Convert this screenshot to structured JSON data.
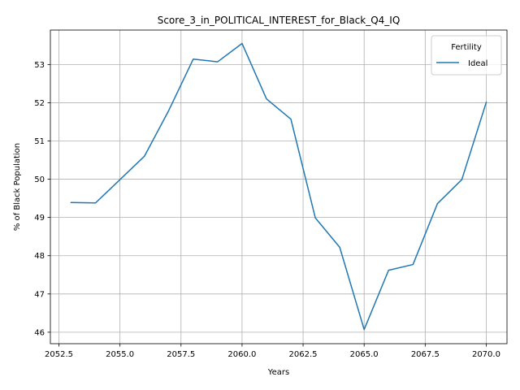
{
  "chart_data": {
    "type": "line",
    "title": "Score_3_in_POLITICAL_INTEREST_for_Black_Q4_IQ",
    "xlabel": "Years",
    "ylabel": "% of Black Population",
    "xlim": [
      2052.15,
      2070.85
    ],
    "ylim": [
      45.7,
      53.9
    ],
    "x_ticks": [
      2052.5,
      2055.0,
      2057.5,
      2060.0,
      2062.5,
      2065.0,
      2067.5,
      2070.0
    ],
    "x_tick_labels": [
      "2052.5",
      "2055.0",
      "2057.5",
      "2060.0",
      "2062.5",
      "2065.0",
      "2067.5",
      "2070.0"
    ],
    "y_ticks": [
      46,
      47,
      48,
      49,
      50,
      51,
      52,
      53
    ],
    "y_tick_labels": [
      "46",
      "47",
      "48",
      "49",
      "50",
      "51",
      "52",
      "53"
    ],
    "grid": true,
    "legend": {
      "title": "Fertility",
      "placement": "top-right",
      "entries": [
        "Ideal"
      ]
    },
    "series": [
      {
        "name": "Ideal",
        "color": "#1f77b4",
        "x": [
          2053,
          2054,
          2055,
          2056,
          2057,
          2058,
          2059,
          2060,
          2061,
          2062,
          2063,
          2064,
          2065,
          2066,
          2067,
          2068,
          2069,
          2070
        ],
        "y": [
          49.39,
          49.38,
          49.99,
          50.6,
          51.8,
          53.14,
          53.07,
          53.55,
          52.1,
          51.57,
          48.99,
          48.22,
          46.07,
          47.62,
          47.77,
          49.36,
          49.99,
          52.01
        ]
      }
    ]
  }
}
